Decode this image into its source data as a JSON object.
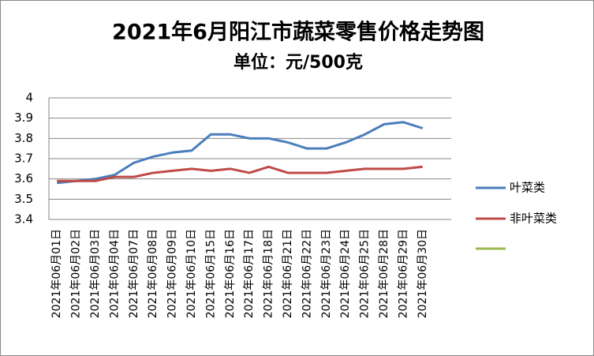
{
  "chart_data": {
    "type": "line",
    "title": "2021年6月阳江市蔬菜零售价格走势图",
    "subtitle": "单位：元/500克",
    "categories": [
      "2021年06月01日",
      "2021年06月02日",
      "2021年06月03日",
      "2021年06月04日",
      "2021年06月07日",
      "2021年06月08日",
      "2021年06月09日",
      "2021年06月10日",
      "2021年06月15日",
      "2021年06月16日",
      "2021年06月17日",
      "2021年06月18日",
      "2021年06月21日",
      "2021年06月22日",
      "2021年06月23日",
      "2021年06月24日",
      "2021年06月25日",
      "2021年06月28日",
      "2021年06月29日",
      "2021年06月30日"
    ],
    "series": [
      {
        "name": "叶菜类",
        "color": "#4a7ebb",
        "values": [
          3.58,
          3.59,
          3.6,
          3.62,
          3.68,
          3.71,
          3.73,
          3.74,
          3.82,
          3.82,
          3.8,
          3.8,
          3.78,
          3.75,
          3.75,
          3.78,
          3.82,
          3.87,
          3.88,
          3.85
        ]
      },
      {
        "name": "非叶菜类",
        "color": "#be4b48",
        "values": [
          3.59,
          3.59,
          3.59,
          3.61,
          3.61,
          3.63,
          3.64,
          3.65,
          3.64,
          3.65,
          3.63,
          3.66,
          3.63,
          3.63,
          3.63,
          3.64,
          3.65,
          3.65,
          3.65,
          3.66
        ]
      }
    ],
    "ylim": [
      3.4,
      4
    ],
    "yticks": [
      3.4,
      3.5,
      3.6,
      3.7,
      3.8,
      3.9,
      4
    ],
    "grid": true,
    "legend": "right"
  }
}
